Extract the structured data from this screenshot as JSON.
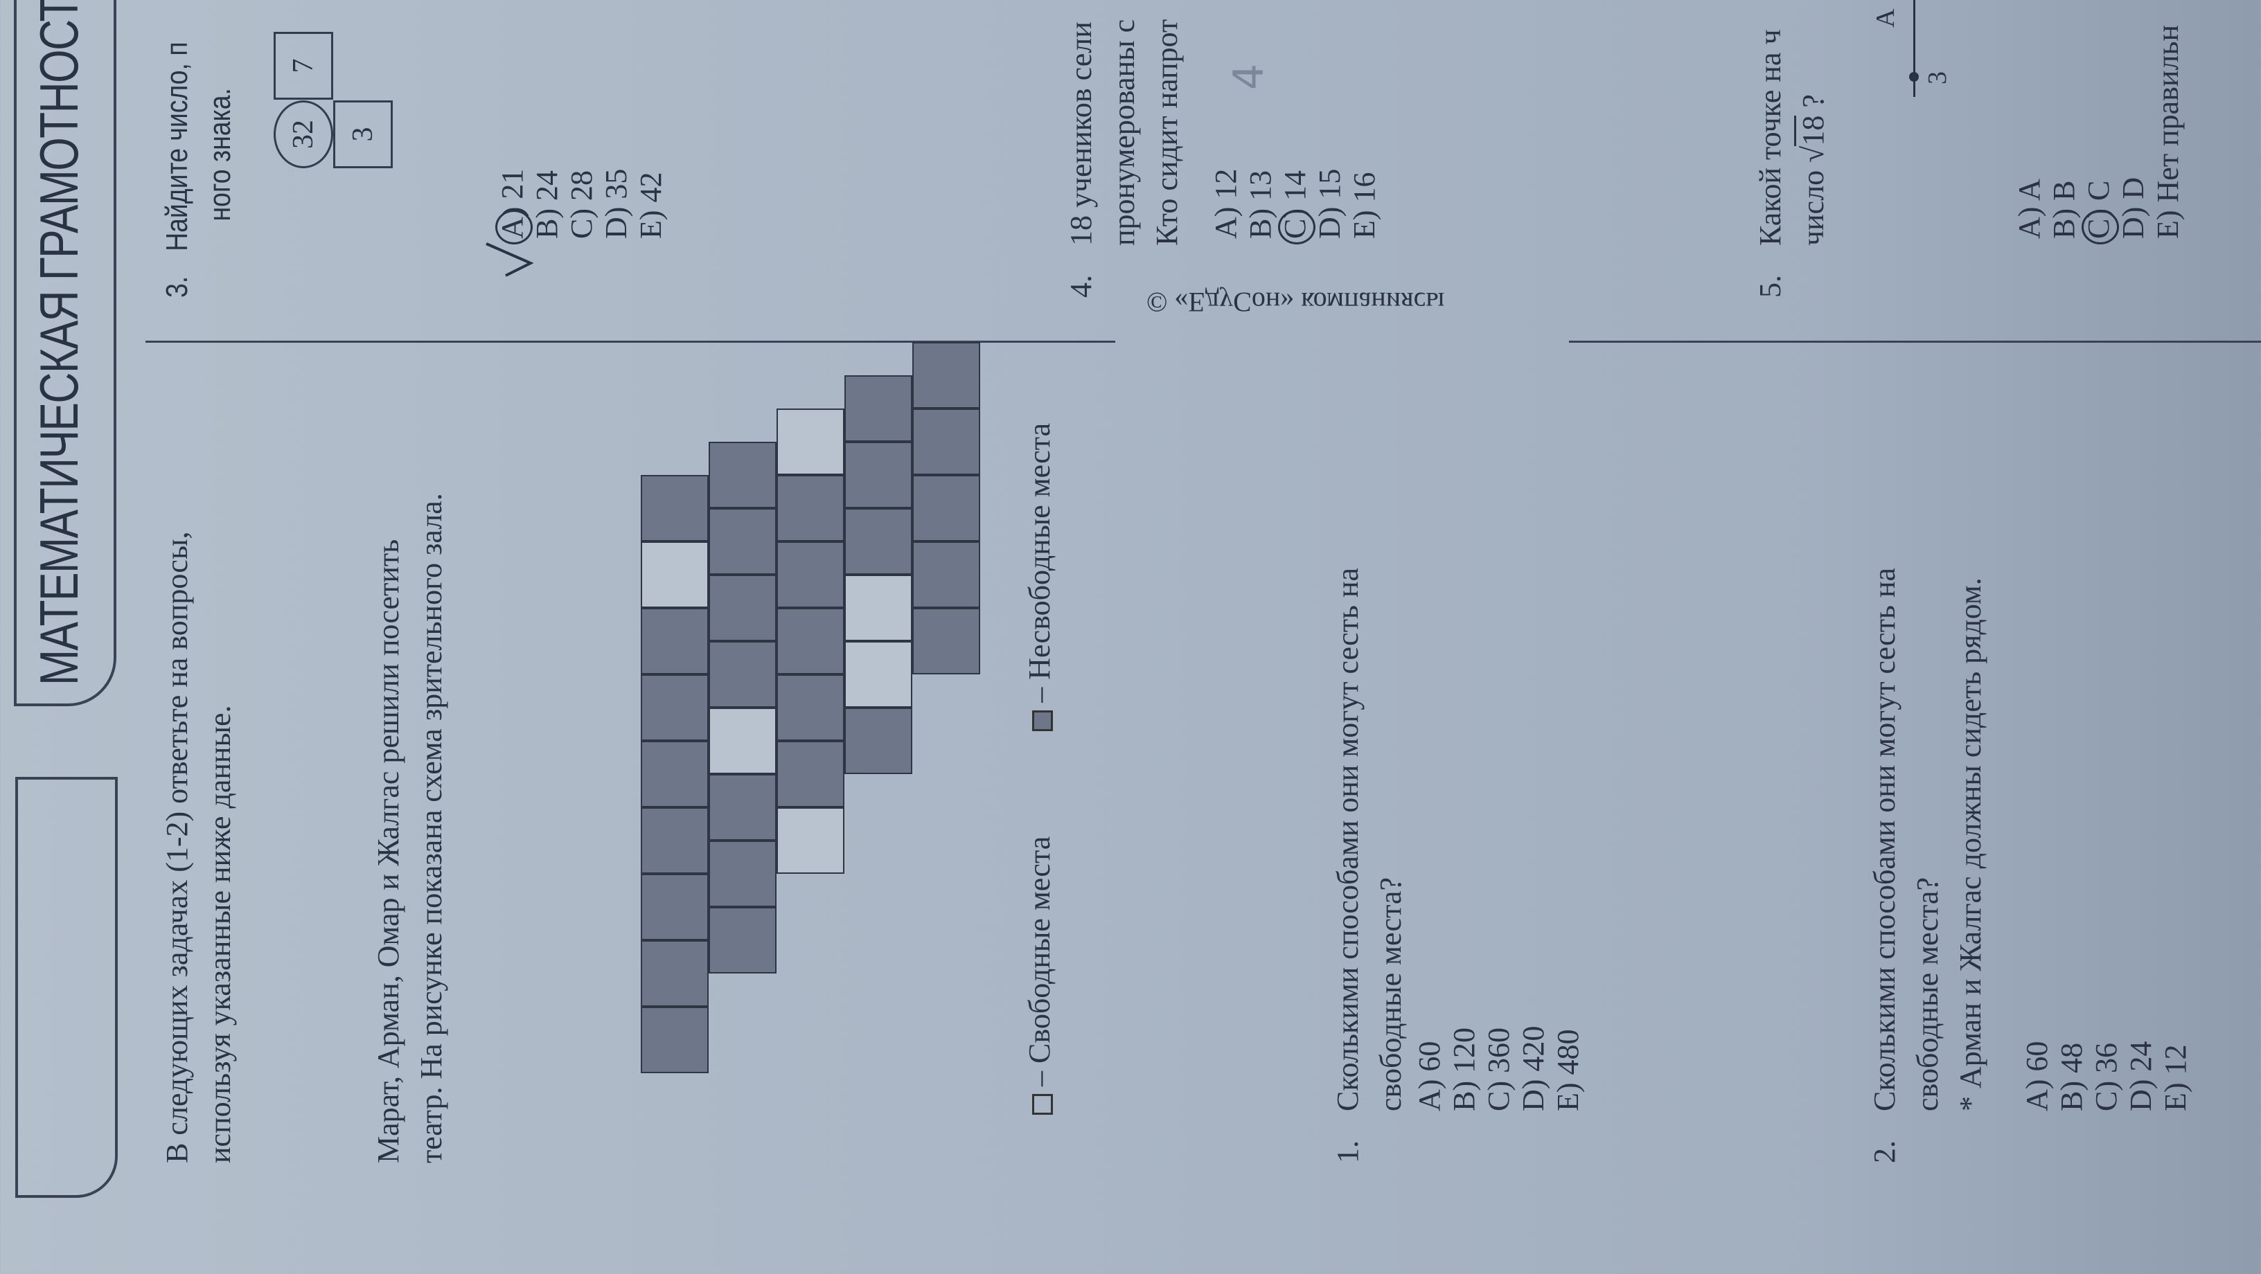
{
  "header": {
    "title": "МАТЕМАТИЧЕСКАЯ ГРАМОТНОСТ"
  },
  "intro": {
    "line1": "В следующих задачах (1-2) ответьте на вопросы,",
    "line2": "используя указанные ниже данные."
  },
  "context": {
    "line1": "Марат, Арман, Омар и Жалгас решили посетить",
    "line2": "театр. На рисунке показана схема зрительного зала."
  },
  "seating": {
    "rows": [
      {
        "seats": 9,
        "free": [
          1
        ]
      },
      {
        "seats": 8,
        "free": [
          4
        ]
      },
      {
        "seats": 7,
        "free": [
          0,
          6
        ]
      },
      {
        "seats": 6,
        "free": [
          3,
          4
        ]
      },
      {
        "seats": 5,
        "free": []
      }
    ],
    "colors": {
      "taken": "#6d7789",
      "free": "#b9c3cf"
    }
  },
  "legend": {
    "free": "– Свободные места",
    "taken": "– Несвободные места"
  },
  "q1": {
    "number": "1.",
    "line1": "Сколькими способами они могут сесть на",
    "line2": "свободные места?",
    "options": [
      "A)  60",
      "B)  120",
      "C)  360",
      "D)  420",
      "E)  480"
    ]
  },
  "q2": {
    "number": "2.",
    "line1": "Сколькими способами они могут сесть на",
    "line2": "свободные места?",
    "note": "* Арман и Жалгас должны сидеть рядом.",
    "options": [
      "A)  60",
      "B)  48",
      "C)  36",
      "D)  24",
      "E)  12"
    ]
  },
  "q3": {
    "number": "3.",
    "line1": "Найдите число, п",
    "line2": "ного знака.",
    "boxes": [
      "32",
      "7",
      "3"
    ],
    "options": [
      "A)  21",
      "B)  24",
      "C)  28",
      "D)  35",
      "E)  42"
    ],
    "marked": "A"
  },
  "q4": {
    "number": "4.",
    "line1": "18 учеников сели",
    "line2": "пронумерованы с",
    "line3": "Кто сидит напрот",
    "options": [
      "A)  12",
      "B)  13",
      "C)  14",
      "D)  15",
      "E)  16"
    ],
    "marked": "C",
    "handwritten": "4"
  },
  "q5": {
    "number": "5.",
    "line1": "Какой точке на ч",
    "line2_prefix": "число ",
    "radicand": "18",
    "line2_suffix": " ?",
    "numberline": {
      "point_label": "A",
      "tick_label": "3"
    },
    "options": [
      "A)  A",
      "B)  B",
      "C)  C",
      "D)  D",
      "E)  Нет правильн"
    ],
    "marked": "C"
  },
  "footer": {
    "copyright": "© «ЕдуСон» компаниясы"
  }
}
